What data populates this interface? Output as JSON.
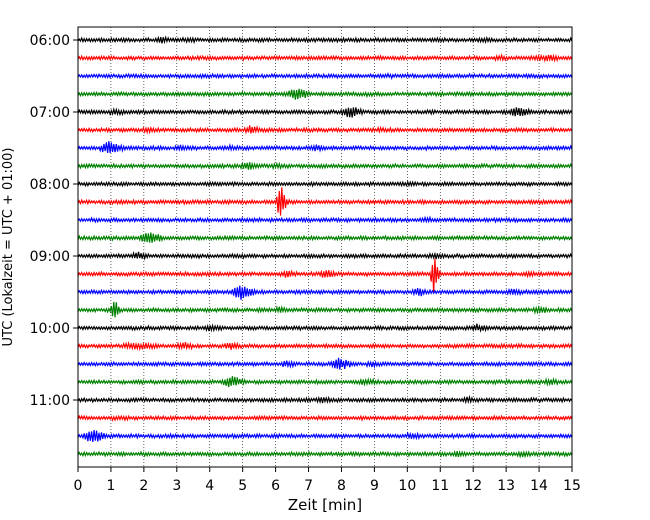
{
  "chart_data": {
    "type": "line",
    "title": "",
    "xlabel": "Zeit  [min]",
    "ylabel": "UTC (Lokalzeit = UTC + 01:00)",
    "xlim": [
      0,
      15
    ],
    "x_ticks": [
      0,
      1,
      2,
      3,
      4,
      5,
      6,
      7,
      8,
      9,
      10,
      11,
      12,
      13,
      14,
      15
    ],
    "y_tick_labels": [
      "06:00",
      "07:00",
      "08:00",
      "09:00",
      "10:00",
      "11:00"
    ],
    "y_tick_trace_index": [
      0,
      4,
      8,
      12,
      16,
      20
    ],
    "grid": {
      "x": true,
      "y": false,
      "style": "dotted"
    },
    "legend": "none",
    "trace_interval_minutes": 15,
    "colors": [
      "#000000",
      "#ff0000",
      "#0000ff",
      "#008000"
    ],
    "series": [
      {
        "start": "06:00",
        "color": "#000000",
        "events": [
          {
            "x": 2.5,
            "amp": 0.6
          },
          {
            "x": 3.3,
            "amp": 0.4
          },
          {
            "x": 12.3,
            "amp": 0.3
          }
        ]
      },
      {
        "start": "06:15",
        "color": "#ff0000",
        "events": [
          {
            "x": 12.8,
            "amp": 0.4
          },
          {
            "x": 13.9,
            "amp": 0.6
          },
          {
            "x": 14.3,
            "amp": 0.6
          }
        ]
      },
      {
        "start": "06:30",
        "color": "#0000ff",
        "events": [
          {
            "x": 9.5,
            "amp": 0.2
          }
        ]
      },
      {
        "start": "06:45",
        "color": "#008000",
        "events": [
          {
            "x": 6.6,
            "amp": 1.6
          },
          {
            "x": 8.8,
            "amp": 0.2
          }
        ]
      },
      {
        "start": "07:00",
        "color": "#000000",
        "events": [
          {
            "x": 1.1,
            "amp": 0.6
          },
          {
            "x": 8.2,
            "amp": 2.0
          },
          {
            "x": 13.3,
            "amp": 1.3
          }
        ]
      },
      {
        "start": "07:15",
        "color": "#ff0000",
        "events": [
          {
            "x": 2.1,
            "amp": 0.5
          },
          {
            "x": 5.2,
            "amp": 1.0
          },
          {
            "x": 9.2,
            "amp": 0.3
          }
        ]
      },
      {
        "start": "07:30",
        "color": "#0000ff",
        "events": [
          {
            "x": 0.9,
            "amp": 2.0
          },
          {
            "x": 3.1,
            "amp": 0.7
          },
          {
            "x": 4.6,
            "amp": 0.5
          },
          {
            "x": 7.2,
            "amp": 0.6
          }
        ]
      },
      {
        "start": "07:45",
        "color": "#008000",
        "events": [
          {
            "x": 5.1,
            "amp": 1.0
          },
          {
            "x": 6.0,
            "amp": 0.4
          }
        ]
      },
      {
        "start": "08:00",
        "color": "#000000",
        "events": [
          {
            "x": 10.0,
            "amp": 0.2
          }
        ]
      },
      {
        "start": "08:15",
        "color": "#ff0000",
        "events": [
          {
            "x": 6.2,
            "amp": 0.6
          },
          {
            "x": 6.1,
            "amp": 4.5
          }
        ]
      },
      {
        "start": "08:30",
        "color": "#0000ff",
        "events": [
          {
            "x": 10.5,
            "amp": 0.4
          }
        ]
      },
      {
        "start": "08:45",
        "color": "#008000",
        "events": [
          {
            "x": 2.1,
            "amp": 1.8
          }
        ]
      },
      {
        "start": "09:00",
        "color": "#000000",
        "events": [
          {
            "x": 1.8,
            "amp": 0.9
          },
          {
            "x": 10.8,
            "amp": 0.5
          }
        ]
      },
      {
        "start": "09:15",
        "color": "#ff0000",
        "events": [
          {
            "x": 6.3,
            "amp": 0.7
          },
          {
            "x": 7.5,
            "amp": 1.1
          },
          {
            "x": 10.8,
            "amp": 5.0
          },
          {
            "x": 13.7,
            "amp": 0.5
          }
        ]
      },
      {
        "start": "09:30",
        "color": "#0000ff",
        "events": [
          {
            "x": 4.9,
            "amp": 2.5
          },
          {
            "x": 10.3,
            "amp": 1.1
          },
          {
            "x": 13.2,
            "amp": 0.6
          }
        ]
      },
      {
        "start": "09:45",
        "color": "#008000",
        "events": [
          {
            "x": 1.1,
            "amp": 2.8
          },
          {
            "x": 6.1,
            "amp": 0.6
          },
          {
            "x": 14.0,
            "amp": 0.7
          }
        ]
      },
      {
        "start": "10:00",
        "color": "#000000",
        "events": [
          {
            "x": 4.0,
            "amp": 0.5
          },
          {
            "x": 12.1,
            "amp": 0.9
          }
        ]
      },
      {
        "start": "10:15",
        "color": "#ff0000",
        "events": [
          {
            "x": 1.5,
            "amp": 0.5
          },
          {
            "x": 1.8,
            "amp": 0.5
          },
          {
            "x": 2.1,
            "amp": 0.6
          },
          {
            "x": 3.2,
            "amp": 1.0
          },
          {
            "x": 4.6,
            "amp": 0.8
          }
        ]
      },
      {
        "start": "10:30",
        "color": "#0000ff",
        "events": [
          {
            "x": 6.3,
            "amp": 0.6
          },
          {
            "x": 7.9,
            "amp": 1.6
          },
          {
            "x": 8.9,
            "amp": 0.5
          }
        ]
      },
      {
        "start": "10:45",
        "color": "#008000",
        "events": [
          {
            "x": 4.6,
            "amp": 1.7
          },
          {
            "x": 8.7,
            "amp": 0.6
          },
          {
            "x": 14.3,
            "amp": 0.6
          }
        ]
      },
      {
        "start": "11:00",
        "color": "#000000",
        "events": [
          {
            "x": 7.4,
            "amp": 0.6
          },
          {
            "x": 11.8,
            "amp": 0.5
          }
        ]
      },
      {
        "start": "11:15",
        "color": "#ff0000",
        "events": [
          {
            "x": 1.2,
            "amp": 0.3
          }
        ]
      },
      {
        "start": "11:30",
        "color": "#0000ff",
        "events": [
          {
            "x": 0.4,
            "amp": 2.0
          },
          {
            "x": 10.1,
            "amp": 0.6
          }
        ]
      },
      {
        "start": "11:45",
        "color": "#008000",
        "events": [
          {
            "x": 11.5,
            "amp": 0.6
          },
          {
            "x": 13.5,
            "amp": 0.6
          }
        ]
      }
    ]
  }
}
